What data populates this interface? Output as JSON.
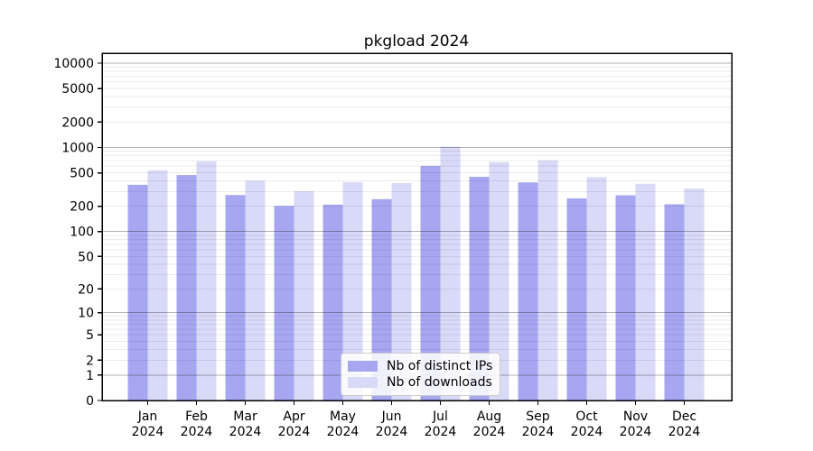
{
  "title": "pkgload 2024",
  "chart_data": {
    "type": "bar",
    "title": "pkgload 2024",
    "categories": [
      "Jan",
      "Feb",
      "Mar",
      "Apr",
      "May",
      "Jun",
      "Jul",
      "Aug",
      "Sep",
      "Oct",
      "Nov",
      "Dec"
    ],
    "x_tick_second_line": "2024",
    "series": [
      {
        "name": "Nb of distinct IPs",
        "color": "#a6a6f1",
        "values": [
          360,
          470,
          272,
          202,
          209,
          243,
          604,
          448,
          384,
          248,
          270,
          211
        ]
      },
      {
        "name": "Nb of downloads",
        "color": "#d9d9f8",
        "values": [
          535,
          685,
          403,
          302,
          386,
          377,
          1022,
          670,
          700,
          444,
          370,
          325
        ]
      }
    ],
    "yscale": "log1p",
    "ylim": [
      0,
      13000
    ],
    "yticks": [
      0,
      1,
      2,
      5,
      10,
      20,
      50,
      100,
      200,
      500,
      1000,
      2000,
      5000,
      10000
    ],
    "minor_yticks": [
      3,
      4,
      6,
      7,
      8,
      9,
      30,
      40,
      60,
      70,
      80,
      90,
      300,
      400,
      600,
      700,
      800,
      900,
      3000,
      4000,
      6000,
      7000,
      8000,
      9000
    ],
    "decade_lines": [
      1,
      10,
      100,
      1000,
      10000
    ],
    "grid": true,
    "legend_position": "lower center",
    "colors": {
      "grid_minor": "rgba(0,0,0,0.08)",
      "grid_decade": "rgba(0,0,0,0.30)",
      "axis": "#000000",
      "text": "#000000"
    }
  }
}
